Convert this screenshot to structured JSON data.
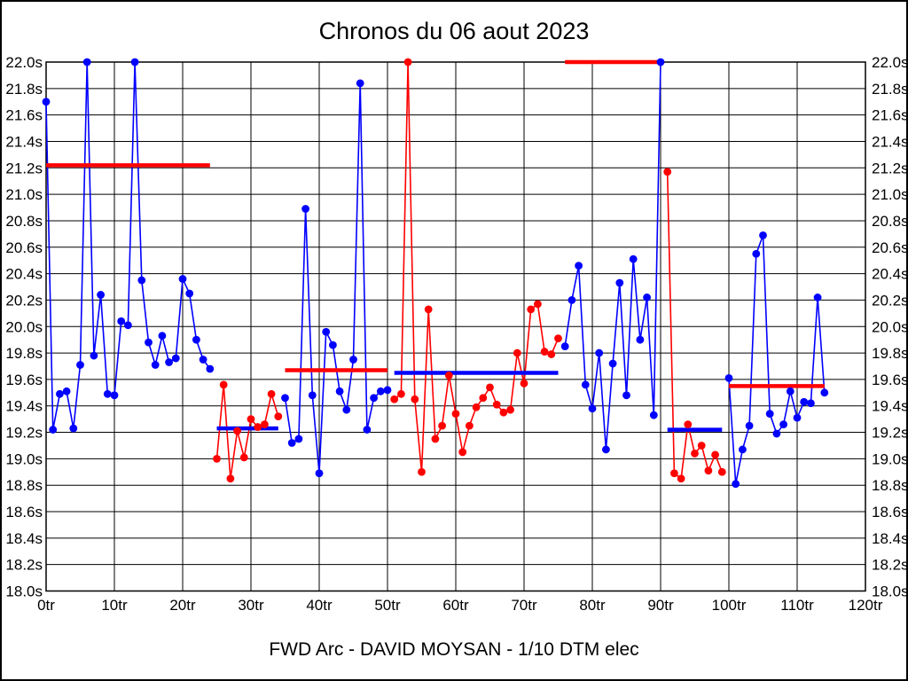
{
  "page": {
    "title": "Chronos du 06 aout 2023",
    "footer": "FWD Arc - DAVID MOYSAN - 1/10 DTM elec"
  },
  "chart_data": {
    "type": "line",
    "title": "Chronos du 06 aout 2023",
    "footer_label": "FWD Arc - DAVID MOYSAN - 1/10 DTM elec",
    "x_unit": "tr",
    "y_unit": "s",
    "xlim": [
      0,
      120
    ],
    "ylim": [
      18.0,
      22.0
    ],
    "x_tick_step": 10,
    "y_tick_step": 0.2,
    "x_tick_labels": [
      "0tr",
      "10tr",
      "20tr",
      "30tr",
      "40tr",
      "50tr",
      "60tr",
      "70tr",
      "80tr",
      "90tr",
      "100tr",
      "110tr",
      "120tr"
    ],
    "y_tick_labels": [
      "22.0s",
      "21.8s",
      "21.6s",
      "21.4s",
      "21.2s",
      "21.0s",
      "20.8s",
      "20.6s",
      "20.4s",
      "20.2s",
      "20.0s",
      "19.8s",
      "19.6s",
      "19.4s",
      "19.2s",
      "19.0s",
      "18.8s",
      "18.6s",
      "18.4s",
      "18.2s",
      "18.0s"
    ],
    "grid": true,
    "legend": "none",
    "colors": {
      "blue_series": "#0000ff",
      "red_series": "#ff0000",
      "grid": "#000000",
      "text": "#000000"
    },
    "runs": [
      {
        "name": "run-1",
        "color": "#0000ff",
        "start_lap": 0,
        "avg_line": {
          "color": "#ff0000",
          "value": 21.22
        },
        "lap_times": [
          21.7,
          19.22,
          19.49,
          19.51,
          19.23,
          19.71,
          22.0,
          19.78,
          20.24,
          19.49,
          19.48,
          20.04,
          20.01,
          22.0,
          20.35,
          19.88,
          19.71,
          19.93,
          19.73,
          19.76,
          20.36,
          20.25,
          19.9,
          19.75,
          19.68
        ]
      },
      {
        "name": "run-2",
        "color": "#ff0000",
        "start_lap": 25,
        "avg_line": {
          "color": "#0000ff",
          "value": 19.23
        },
        "lap_times": [
          19.0,
          19.56,
          18.85,
          19.21,
          19.01,
          19.3,
          19.24,
          19.26,
          19.49,
          19.32
        ]
      },
      {
        "name": "run-3",
        "color": "#0000ff",
        "start_lap": 35,
        "avg_line": {
          "color": "#ff0000",
          "value": 19.67
        },
        "lap_times": [
          19.46,
          19.12,
          19.15,
          20.89,
          19.48,
          18.89,
          19.96,
          19.86,
          19.51,
          19.37,
          19.75,
          21.84,
          19.22,
          19.46,
          19.51,
          19.52
        ]
      },
      {
        "name": "run-4",
        "color": "#ff0000",
        "start_lap": 51,
        "avg_line": {
          "color": "#0000ff",
          "value": 19.65
        },
        "lap_times": [
          19.45,
          19.49,
          22.0,
          19.45,
          18.9,
          20.13,
          19.15,
          19.25,
          19.63,
          19.34,
          19.05,
          19.25,
          19.39,
          19.46,
          19.54,
          19.41,
          19.35,
          19.37,
          19.8,
          19.57,
          20.13,
          20.17,
          19.81,
          19.79,
          19.91
        ]
      },
      {
        "name": "run-5",
        "color": "#0000ff",
        "start_lap": 76,
        "avg_line": {
          "color": "#ff0000",
          "value": 22.0
        },
        "lap_times": [
          19.85,
          20.2,
          20.46,
          19.56,
          19.38,
          19.8,
          19.07,
          19.72,
          20.33,
          19.48,
          20.51,
          19.9,
          20.22,
          19.33,
          22.0
        ]
      },
      {
        "name": "run-6",
        "color": "#ff0000",
        "start_lap": 91,
        "avg_line": {
          "color": "#0000ff",
          "value": 19.22
        },
        "lap_times": [
          21.17,
          18.89,
          18.85,
          19.26,
          19.04,
          19.1,
          18.91,
          19.03,
          18.9
        ]
      },
      {
        "name": "run-7",
        "color": "#0000ff",
        "start_lap": 100,
        "avg_line": {
          "color": "#ff0000",
          "value": 19.55
        },
        "lap_times": [
          19.61,
          18.81,
          19.07,
          19.25,
          20.55,
          20.69,
          19.34,
          19.19,
          19.26,
          19.51,
          19.31,
          19.43,
          19.42,
          20.22,
          19.5
        ]
      }
    ]
  }
}
